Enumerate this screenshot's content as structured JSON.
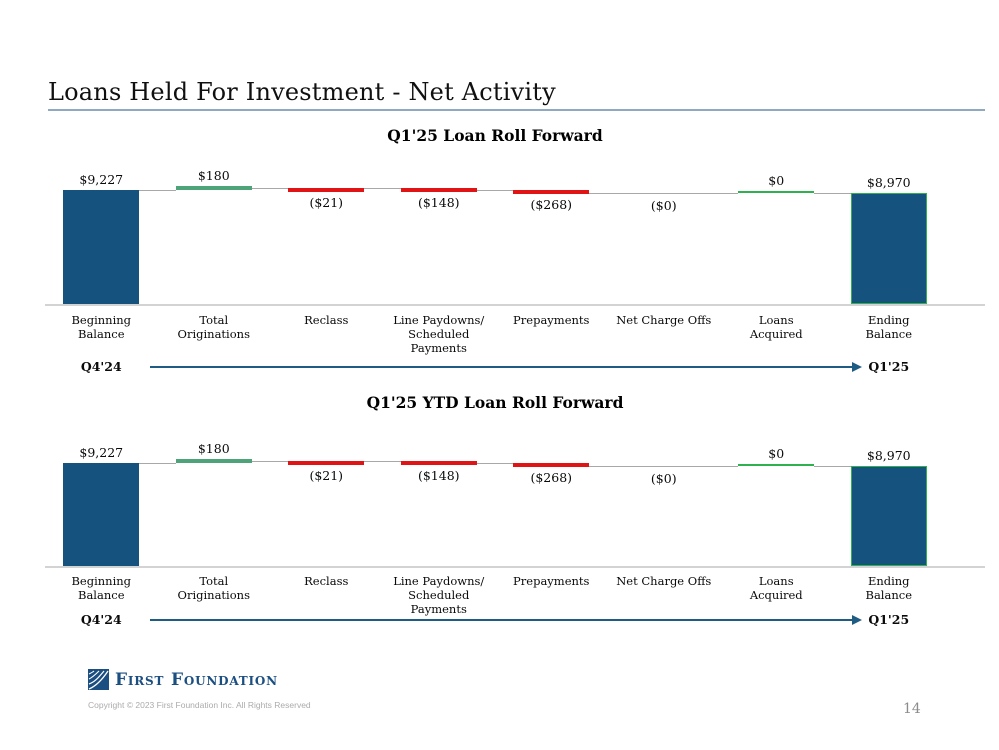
{
  "slide": {
    "title": "Loans Held For Investment - Net Activity",
    "page_number": "14",
    "footer": {
      "logo_text": "First Foundation",
      "copyright": "Copyright © 2023 First Foundation Inc. All Rights Reserved"
    }
  },
  "colors": {
    "navy_bar": "#15537E",
    "green_bar": "#4FA378",
    "bright_green": "#2EB14E",
    "red_bar": "#E01414",
    "connector_gray": "#A8A8A8",
    "baseline_gray": "#D3D3D3",
    "arrow_blue": "#1F5C83",
    "title_rule": "#8FAAC0",
    "logo_navy": "#1B4F82"
  },
  "chart_data": [
    {
      "type": "bar",
      "subtype": "waterfall",
      "title": "Q1'25 Loan Roll Forward",
      "start_label": "Q4'24",
      "end_label": "Q1'25",
      "ylim": [
        0,
        9227
      ],
      "grid": false,
      "legend": false,
      "columns": [
        {
          "category": "Beginning Balance",
          "label_lines": [
            "Beginning",
            "Balance"
          ],
          "value": 9227,
          "display": "$9,227",
          "kind": "begin"
        },
        {
          "category": "Total Originations",
          "label_lines": [
            "Total",
            "Originations"
          ],
          "value": 180,
          "display": "$180",
          "kind": "pos"
        },
        {
          "category": "Reclass",
          "label_lines": [
            "Reclass"
          ],
          "value": -21,
          "display": "($21)",
          "kind": "neg"
        },
        {
          "category": "Line Paydowns/ Scheduled Payments",
          "label_lines": [
            "Line Paydowns/",
            "Scheduled Payments"
          ],
          "value": -148,
          "display": "($148)",
          "kind": "neg"
        },
        {
          "category": "Prepayments",
          "label_lines": [
            "Prepayments"
          ],
          "value": -268,
          "display": "($268)",
          "kind": "neg"
        },
        {
          "category": "Net Charge Offs",
          "label_lines": [
            "Net Charge Offs"
          ],
          "value": 0,
          "display": "($0)",
          "kind": "neg"
        },
        {
          "category": "Loans Acquired",
          "label_lines": [
            "Loans",
            "Acquired"
          ],
          "value": 0,
          "display": "$0",
          "kind": "pos"
        },
        {
          "category": "Ending Balance",
          "label_lines": [
            "Ending",
            "Balance"
          ],
          "value": 8970,
          "display": "$8,970",
          "kind": "end"
        }
      ]
    },
    {
      "type": "bar",
      "subtype": "waterfall",
      "title": "Q1'25 YTD Loan Roll Forward",
      "start_label": "Q4'24",
      "end_label": "Q1'25",
      "ylim": [
        0,
        9227
      ],
      "grid": false,
      "legend": false,
      "columns": [
        {
          "category": "Beginning Balance",
          "label_lines": [
            "Beginning",
            "Balance"
          ],
          "value": 9227,
          "display": "$9,227",
          "kind": "begin"
        },
        {
          "category": "Total Originations",
          "label_lines": [
            "Total",
            "Originations"
          ],
          "value": 180,
          "display": "$180",
          "kind": "pos"
        },
        {
          "category": "Reclass",
          "label_lines": [
            "Reclass"
          ],
          "value": -21,
          "display": "($21)",
          "kind": "neg"
        },
        {
          "category": "Line Paydowns/ Scheduled Payments",
          "label_lines": [
            "Line Paydowns/",
            "Scheduled Payments"
          ],
          "value": -148,
          "display": "($148)",
          "kind": "neg"
        },
        {
          "category": "Prepayments",
          "label_lines": [
            "Prepayments"
          ],
          "value": -268,
          "display": "($268)",
          "kind": "neg"
        },
        {
          "category": "Net Charge Offs",
          "label_lines": [
            "Net Charge Offs"
          ],
          "value": 0,
          "display": "($0)",
          "kind": "neg"
        },
        {
          "category": "Loans Acquired",
          "label_lines": [
            "Loans",
            "Acquired"
          ],
          "value": 0,
          "display": "$0",
          "kind": "pos"
        },
        {
          "category": "Ending Balance",
          "label_lines": [
            "Ending",
            "Balance"
          ],
          "value": 8970,
          "display": "$8,970",
          "kind": "end"
        }
      ]
    }
  ]
}
